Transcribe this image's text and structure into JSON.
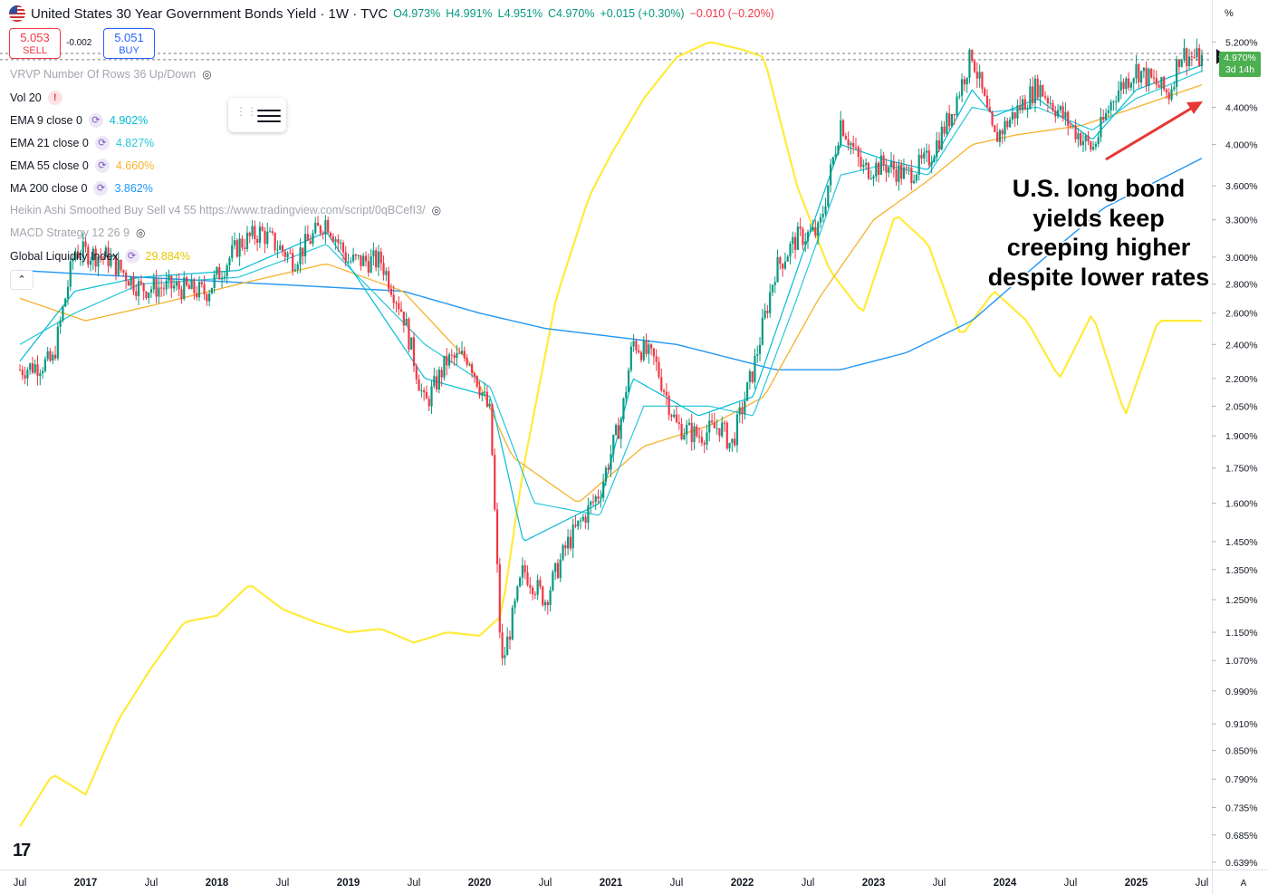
{
  "header": {
    "title": "United States 30 Year Government Bonds Yield · 1W · TVC",
    "open": "O4.973%",
    "high": "H4.991%",
    "low": "L4.951%",
    "close": "C4.970%",
    "change": "+0.015 (+0.30%)",
    "change2": "−0.010 (−0.20%)"
  },
  "trade": {
    "sell_price": "5.053",
    "sell_label": "SELL",
    "spread": "-0.002",
    "buy_price": "5.051",
    "buy_label": "BUY"
  },
  "indicators": [
    {
      "label": "VRVP Number Of Rows 36 Up/Down",
      "value": "",
      "hidden": true,
      "color": "#a3a6af"
    },
    {
      "label": "Vol 20",
      "value": "",
      "hidden": false,
      "color": "#131722"
    },
    {
      "label": "EMA 9 close 0",
      "value": "4.902%",
      "hidden": false,
      "color": "#00bcd4"
    },
    {
      "label": "EMA 21 close 0",
      "value": "4.827%",
      "hidden": false,
      "color": "#26c6da"
    },
    {
      "label": "EMA 55 close 0",
      "value": "4.660%",
      "hidden": false,
      "color": "#f7b12b"
    },
    {
      "label": "MA 200 close 0",
      "value": "3.862%",
      "hidden": false,
      "color": "#2196f3"
    },
    {
      "label": "Heikin Ashi Smoothed Buy Sell v4 55 https://www.tradingview.com/script/0qBCefI3/",
      "value": "",
      "hidden": true,
      "color": "#a3a6af"
    },
    {
      "label": "MACD Strategy 12 26 9",
      "value": "",
      "hidden": true,
      "color": "#a3a6af"
    },
    {
      "label": "Global Liquidity Index",
      "value": "29.884%",
      "hidden": false,
      "color": "#ffeb3b"
    }
  ],
  "annotation": "U.S. long bond yields keep creeping higher despite lower rates",
  "price_axis": {
    "unit": "%",
    "last_value": "4.970%",
    "countdown": "3d 14h",
    "ticks": [
      "5.200%",
      "4.400%",
      "4.000%",
      "3.600%",
      "3.300%",
      "3.000%",
      "2.800%",
      "2.600%",
      "2.400%",
      "2.200%",
      "2.050%",
      "1.900%",
      "1.750%",
      "1.600%",
      "1.450%",
      "1.350%",
      "1.250%",
      "1.150%",
      "1.070%",
      "0.990%",
      "0.910%",
      "0.850%",
      "0.790%",
      "0.735%",
      "0.685%",
      "0.639%"
    ]
  },
  "time_axis": [
    "Jul",
    "2017",
    "Jul",
    "2018",
    "Jul",
    "2019",
    "Jul",
    "2020",
    "Jul",
    "2021",
    "Jul",
    "2022",
    "Jul",
    "2023",
    "Jul",
    "2024",
    "Jul",
    "2025",
    "Jul"
  ],
  "auto_button": "A",
  "colors": {
    "up": "#089981",
    "down": "#f23645",
    "ema9": "#00bcd4",
    "ema21": "#26c6da",
    "ema55": "#f7b12b",
    "ma200": "#2196f3",
    "liquidity": "#ffeb3b",
    "arrow": "#e53935",
    "last": "#4caf50"
  },
  "chart_data": {
    "type": "line",
    "log_scale": true,
    "ylim": [
      0.63,
      5.4
    ],
    "series": [
      {
        "name": "United States 30 Year Government Bonds Yield",
        "x": [
          "2016-07",
          "2016-10",
          "2016-12",
          "2017-03",
          "2017-06",
          "2017-09",
          "2017-12",
          "2018-03",
          "2018-05",
          "2018-08",
          "2018-11",
          "2019-01",
          "2019-04",
          "2019-06",
          "2019-08",
          "2019-10",
          "2019-12",
          "2020-02",
          "2020-03",
          "2020-05",
          "2020-07",
          "2020-09",
          "2020-12",
          "2021-02",
          "2021-03",
          "2021-05",
          "2021-07",
          "2021-09",
          "2021-11",
          "2021-12",
          "2022-02",
          "2022-04",
          "2022-06",
          "2022-08",
          "2022-10",
          "2022-12",
          "2023-02",
          "2023-04",
          "2023-06",
          "2023-08",
          "2023-10",
          "2023-12",
          "2024-02",
          "2024-04",
          "2024-07",
          "2024-09",
          "2024-11",
          "2025-01",
          "2025-04",
          "2025-05",
          "2025-07"
        ],
        "values": [
          2.25,
          2.3,
          3.05,
          3.0,
          2.77,
          2.78,
          2.74,
          3.1,
          3.2,
          2.98,
          3.3,
          2.97,
          2.97,
          2.6,
          2.05,
          2.3,
          2.33,
          2.0,
          1.05,
          1.35,
          1.25,
          1.44,
          1.65,
          2.0,
          2.42,
          2.3,
          1.95,
          1.9,
          1.95,
          1.85,
          2.25,
          2.9,
          3.15,
          3.2,
          4.25,
          3.75,
          3.8,
          3.7,
          3.85,
          4.3,
          5.05,
          4.05,
          4.35,
          4.65,
          4.2,
          3.95,
          4.55,
          4.85,
          4.55,
          5.05,
          4.97
        ]
      },
      {
        "name": "EMA 9 close 0",
        "x": [
          "2016-07",
          "2016-12",
          "2017-06",
          "2018-03",
          "2018-11",
          "2019-08",
          "2020-02",
          "2020-05",
          "2020-12",
          "2021-03",
          "2021-09",
          "2022-02",
          "2022-06",
          "2022-10",
          "2023-02",
          "2023-06",
          "2023-10",
          "2023-12",
          "2024-04",
          "2024-09",
          "2025-01",
          "2025-07"
        ],
        "values": [
          2.3,
          2.75,
          2.85,
          2.9,
          3.2,
          2.2,
          2.1,
          1.45,
          1.6,
          2.2,
          2.0,
          2.1,
          2.9,
          4.0,
          3.85,
          3.75,
          4.6,
          4.3,
          4.5,
          4.05,
          4.6,
          4.902
        ]
      },
      {
        "name": "EMA 21 close 0",
        "x": [
          "2016-07",
          "2016-12",
          "2017-06",
          "2018-03",
          "2018-11",
          "2019-08",
          "2020-02",
          "2020-06",
          "2020-12",
          "2021-04",
          "2021-10",
          "2022-02",
          "2022-06",
          "2022-10",
          "2023-02",
          "2023-06",
          "2023-10",
          "2023-12",
          "2024-04",
          "2024-09",
          "2025-01",
          "2025-07"
        ],
        "values": [
          2.4,
          2.6,
          2.8,
          2.85,
          3.1,
          2.4,
          2.15,
          1.6,
          1.55,
          2.05,
          2.05,
          2.0,
          2.7,
          3.7,
          3.8,
          3.7,
          4.4,
          4.35,
          4.4,
          4.15,
          4.5,
          4.827
        ]
      },
      {
        "name": "EMA 55 close 0",
        "x": [
          "2016-07",
          "2017-01",
          "2017-07",
          "2018-03",
          "2018-11",
          "2019-06",
          "2019-12",
          "2020-04",
          "2020-10",
          "2021-04",
          "2021-10",
          "2022-03",
          "2022-08",
          "2023-01",
          "2023-06",
          "2023-10",
          "2024-02",
          "2024-08",
          "2025-01",
          "2025-07"
        ],
        "values": [
          2.7,
          2.55,
          2.65,
          2.8,
          2.95,
          2.75,
          2.3,
          1.8,
          1.6,
          1.85,
          1.95,
          2.1,
          2.7,
          3.3,
          3.65,
          4.0,
          4.1,
          4.2,
          4.4,
          4.66
        ]
      },
      {
        "name": "MA 200 close 0",
        "x": [
          "2016-07",
          "2017-06",
          "2018-06",
          "2019-06",
          "2020-01",
          "2020-07",
          "2021-01",
          "2021-07",
          "2022-01",
          "2022-04",
          "2022-10",
          "2023-04",
          "2023-10",
          "2024-04",
          "2024-10",
          "2025-07"
        ],
        "values": [
          2.9,
          2.85,
          2.8,
          2.75,
          2.6,
          2.5,
          2.45,
          2.4,
          2.3,
          2.25,
          2.25,
          2.35,
          2.55,
          2.95,
          3.4,
          3.862
        ]
      },
      {
        "name": "Global Liquidity Index",
        "x": [
          "2016-07",
          "2016-10",
          "2017-01",
          "2017-04",
          "2017-07",
          "2017-10",
          "2018-01",
          "2018-04",
          "2018-07",
          "2018-10",
          "2019-01",
          "2019-04",
          "2019-07",
          "2019-10",
          "2020-01",
          "2020-03",
          "2020-05",
          "2020-08",
          "2020-11",
          "2021-01",
          "2021-04",
          "2021-07",
          "2021-10",
          "2022-01",
          "2022-03",
          "2022-06",
          "2022-09",
          "2022-12",
          "2023-03",
          "2023-06",
          "2023-09",
          "2023-12",
          "2024-03",
          "2024-06",
          "2024-09",
          "2024-12",
          "2025-03",
          "2025-07"
        ],
        "values": [
          0.7,
          0.8,
          0.76,
          0.92,
          1.05,
          1.18,
          1.2,
          1.3,
          1.22,
          1.18,
          1.15,
          1.16,
          1.12,
          1.15,
          1.14,
          1.2,
          1.75,
          2.7,
          3.5,
          3.9,
          4.5,
          5.0,
          5.2,
          5.1,
          5.0,
          3.6,
          2.9,
          2.6,
          3.35,
          3.1,
          2.45,
          2.75,
          2.55,
          2.2,
          2.6,
          2.0,
          2.55,
          2.55
        ]
      }
    ]
  }
}
